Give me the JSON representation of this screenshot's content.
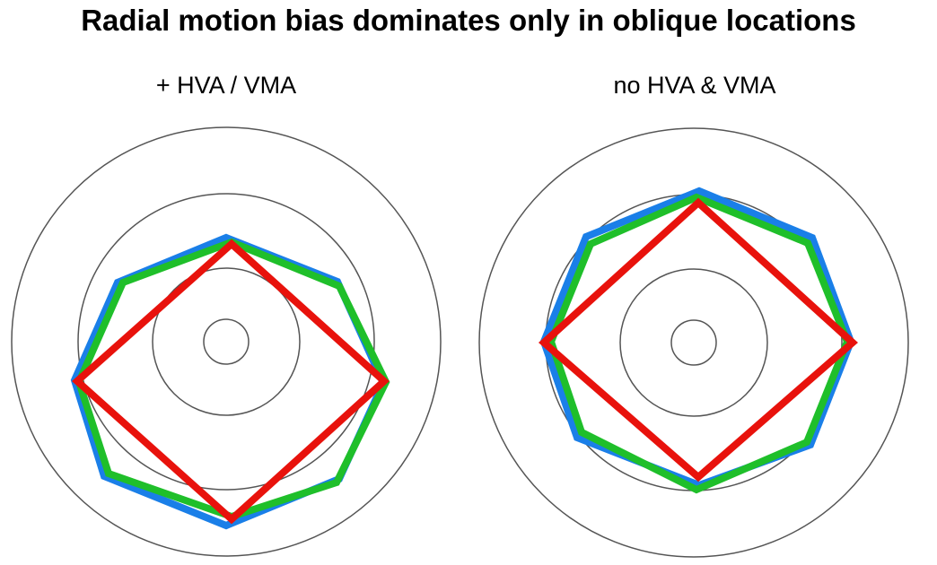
{
  "title": "Radial motion bias dominates only in oblique locations",
  "panels": [
    {
      "label": "+ HVA / VMA"
    },
    {
      "label": "no HVA & VMA"
    }
  ],
  "colors": {
    "ring": "#555555",
    "red": "#e8120c",
    "blue": "#1a7fe8",
    "green": "#1fbf2a",
    "background": "#ffffff",
    "text": "#000000"
  }
}
